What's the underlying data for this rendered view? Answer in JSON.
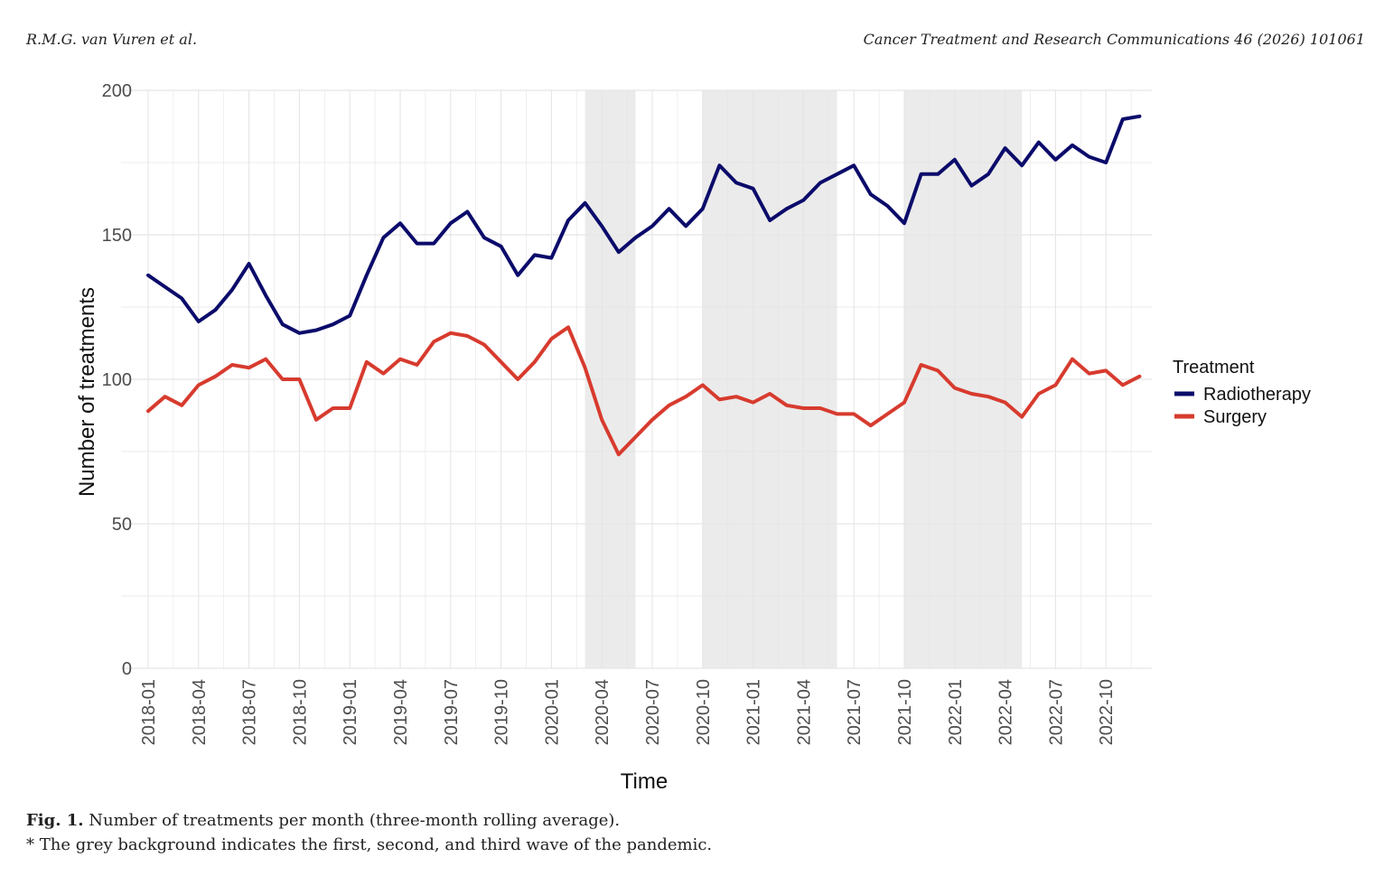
{
  "header": {
    "authors": "R.M.G. van Vuren et al.",
    "journal": "Cancer Treatment and Research Communications 46 (2026) 101061"
  },
  "caption": {
    "label": "Fig. 1.",
    "text": "Number of treatments per month (three-month rolling average).",
    "note": "* The grey background indicates the first, second, and third wave of the pandemic."
  },
  "colors": {
    "radiotherapy": "#0b0b6b",
    "surgery": "#d73b2e",
    "wave_band": "#ebebeb",
    "grid": "#e5e5e5"
  },
  "chart_data": {
    "type": "line",
    "xlabel": "Time",
    "ylabel": "Number of treatments",
    "ylim": [
      0,
      200
    ],
    "yticks": [
      0,
      50,
      100,
      150,
      200
    ],
    "x_start": "2018-01",
    "x_end": "2022-12",
    "xticks": [
      "2018-01",
      "2018-04",
      "2018-07",
      "2018-10",
      "2019-01",
      "2019-04",
      "2019-07",
      "2019-10",
      "2020-01",
      "2020-04",
      "2020-07",
      "2020-10",
      "2021-01",
      "2021-04",
      "2021-07",
      "2021-10",
      "2022-01",
      "2022-04",
      "2022-07",
      "2022-10"
    ],
    "grid": true,
    "legend": {
      "title": "Treatment",
      "position": "right"
    },
    "shaded_regions": [
      {
        "start": "2020-03",
        "end": "2020-06"
      },
      {
        "start": "2020-10",
        "end": "2021-06"
      },
      {
        "start": "2021-10",
        "end": "2022-05"
      }
    ],
    "series": [
      {
        "name": "Radiotherapy",
        "color": "#0b0b6b",
        "values": [
          136,
          132,
          128,
          120,
          124,
          131,
          140,
          129,
          119,
          116,
          117,
          119,
          122,
          136,
          149,
          154,
          147,
          147,
          154,
          158,
          149,
          146,
          136,
          143,
          142,
          155,
          161,
          153,
          144,
          149,
          153,
          159,
          153,
          159,
          174,
          168,
          166,
          155,
          159,
          162,
          168,
          171,
          174,
          164,
          160,
          154,
          171,
          171,
          176,
          167,
          171,
          180,
          174,
          182,
          176,
          181,
          177,
          175,
          190,
          191
        ]
      },
      {
        "name": "Surgery",
        "color": "#d73b2e",
        "values": [
          89,
          94,
          91,
          98,
          101,
          105,
          104,
          107,
          100,
          100,
          86,
          90,
          90,
          106,
          102,
          107,
          105,
          113,
          116,
          115,
          112,
          106,
          100,
          106,
          114,
          118,
          104,
          86,
          74,
          80,
          86,
          91,
          94,
          98,
          93,
          94,
          92,
          95,
          91,
          90,
          90,
          88,
          88,
          84,
          88,
          92,
          105,
          103,
          97,
          95,
          94,
          92,
          87,
          95,
          98,
          107,
          102,
          103,
          98,
          101
        ]
      }
    ]
  }
}
